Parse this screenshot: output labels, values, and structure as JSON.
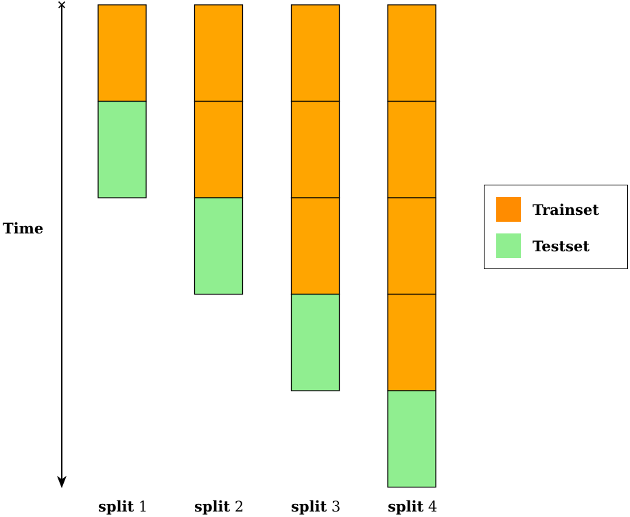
{
  "axis": {
    "label": "Time"
  },
  "splits": [
    {
      "word": "split",
      "number": "1",
      "train_blocks": 1,
      "test_blocks": 1
    },
    {
      "word": "split",
      "number": "2",
      "train_blocks": 2,
      "test_blocks": 1
    },
    {
      "word": "split",
      "number": "3",
      "train_blocks": 3,
      "test_blocks": 1
    },
    {
      "word": "split",
      "number": "4",
      "train_blocks": 4,
      "test_blocks": 1
    }
  ],
  "legend": {
    "train_label": "Trainset",
    "test_label": "Testset"
  },
  "colors": {
    "train": "#ffa500",
    "train_legend": "#ff8c00",
    "test": "#90ee90",
    "stroke": "#000000"
  }
}
